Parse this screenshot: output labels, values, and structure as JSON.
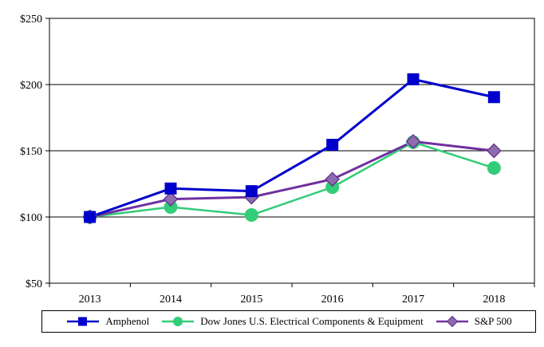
{
  "chart_data": {
    "type": "line",
    "title": "",
    "xlabel": "",
    "ylabel": "",
    "categories": [
      "2013",
      "2014",
      "2015",
      "2016",
      "2017",
      "2018"
    ],
    "ylim": [
      50,
      250
    ],
    "yticks": [
      50,
      100,
      150,
      200,
      250
    ],
    "ytick_labels": [
      "$50",
      "$100",
      "$150",
      "$200",
      "$250"
    ],
    "grid": true,
    "legend_position": "bottom",
    "series": [
      {
        "name": "Amphenol",
        "color": "#0000CC",
        "marker": "square",
        "values": [
          100,
          121.5,
          119.5,
          154.5,
          204,
          190.5
        ]
      },
      {
        "name": "Dow Jones U.S. Electrical Components & Equipment",
        "color": "#33CC77",
        "marker": "circle",
        "values": [
          100,
          107.5,
          101.5,
          122.5,
          156.5,
          137
        ]
      },
      {
        "name": "S&P 500",
        "color": "#7030A0",
        "marker": "diamond",
        "values": [
          100,
          113.5,
          115,
          128.5,
          157,
          150
        ]
      }
    ]
  }
}
